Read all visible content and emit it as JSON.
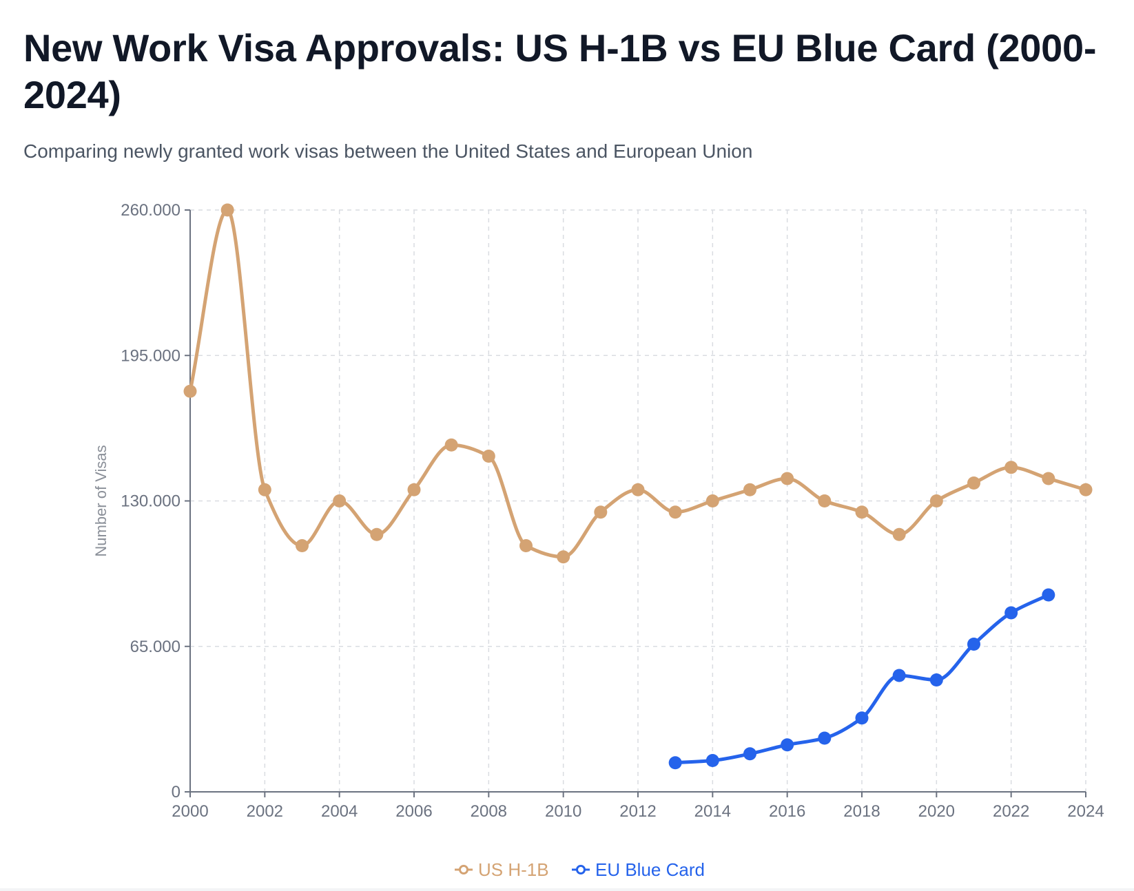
{
  "header": {
    "title": "New Work Visa Approvals: US H-1B vs EU Blue Card (2000-2024)",
    "subtitle": "Comparing newly granted work visas between the United States and European Union"
  },
  "chart_data": {
    "type": "line",
    "title": "New Work Visa Approvals: US H-1B vs EU Blue Card (2000-2024)",
    "subtitle": "Comparing newly granted work visas between the United States and European Union",
    "xlabel": "",
    "ylabel": "Number of Visas",
    "xlim": [
      2000,
      2024
    ],
    "ylim": [
      0,
      260000
    ],
    "x_ticks": [
      "2000",
      "2002",
      "2004",
      "2006",
      "2008",
      "2010",
      "2012",
      "2014",
      "2016",
      "2018",
      "2020",
      "2022",
      "2024"
    ],
    "y_ticks": [
      {
        "value": 0,
        "label": "0"
      },
      {
        "value": 65000,
        "label": "65.000"
      },
      {
        "value": 130000,
        "label": "130.000"
      },
      {
        "value": 195000,
        "label": "195.000"
      },
      {
        "value": 260000,
        "label": "260.000"
      }
    ],
    "grid": true,
    "legend_position": "bottom-center",
    "series": [
      {
        "name": "US H-1B",
        "color": "#d4a373",
        "x": [
          2000,
          2001,
          2002,
          2003,
          2004,
          2005,
          2006,
          2007,
          2008,
          2009,
          2010,
          2011,
          2012,
          2013,
          2014,
          2015,
          2016,
          2017,
          2018,
          2019,
          2020,
          2021,
          2022,
          2023,
          2024
        ],
        "values": [
          179000,
          260000,
          135000,
          110000,
          130000,
          115000,
          135000,
          155000,
          150000,
          110000,
          105000,
          125000,
          135000,
          125000,
          130000,
          135000,
          140000,
          130000,
          125000,
          115000,
          130000,
          138000,
          145000,
          140000,
          135000
        ]
      },
      {
        "name": "EU Blue Card",
        "color": "#2563eb",
        "x": [
          2013,
          2014,
          2015,
          2016,
          2017,
          2018,
          2019,
          2020,
          2021,
          2022,
          2023
        ],
        "values": [
          13000,
          14000,
          17000,
          21000,
          24000,
          33000,
          52000,
          50000,
          66000,
          80000,
          88000
        ]
      }
    ]
  }
}
